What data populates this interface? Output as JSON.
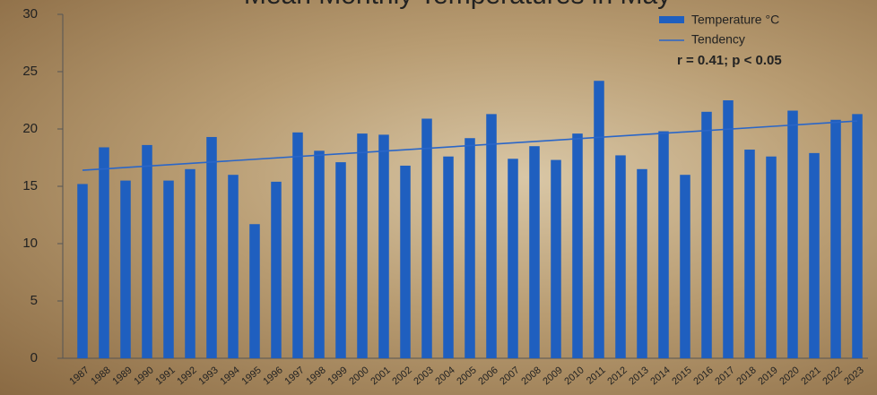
{
  "chart_data": {
    "type": "bar",
    "title": "Mean Monthly Temperatures in May",
    "annotation": "r = 0.41; p < 0.05",
    "categories": [
      "1987",
      "1988",
      "1989",
      "1990",
      "1991",
      "1992",
      "1993",
      "1994",
      "1995",
      "1996",
      "1997",
      "1998",
      "1999",
      "2000",
      "2001",
      "2002",
      "2003",
      "2004",
      "2005",
      "2006",
      "2007",
      "2008",
      "2009",
      "2010",
      "2011",
      "2012",
      "2013",
      "2014",
      "2015",
      "2016",
      "2017",
      "2018",
      "2019",
      "2020",
      "2021",
      "2022",
      "2023"
    ],
    "series": [
      {
        "name": "Temperature °C",
        "color": "#1f5fbf",
        "values": [
          15.2,
          18.4,
          15.5,
          18.6,
          15.5,
          16.5,
          19.3,
          16.0,
          11.7,
          15.4,
          19.7,
          18.1,
          17.1,
          19.6,
          19.5,
          16.8,
          20.9,
          17.6,
          19.2,
          21.3,
          17.4,
          18.5,
          17.3,
          19.6,
          24.2,
          17.7,
          16.5,
          19.8,
          16.0,
          21.5,
          22.5,
          18.2,
          17.6,
          21.6,
          17.9,
          20.8,
          21.3
        ]
      }
    ],
    "trend": {
      "name": "Tendency",
      "color": "#2a66c8",
      "start": 16.4,
      "end": 20.7
    },
    "ylim": [
      0,
      30
    ],
    "yticks": [
      0,
      5,
      10,
      15,
      20,
      25,
      30
    ],
    "legend": "top-right"
  }
}
